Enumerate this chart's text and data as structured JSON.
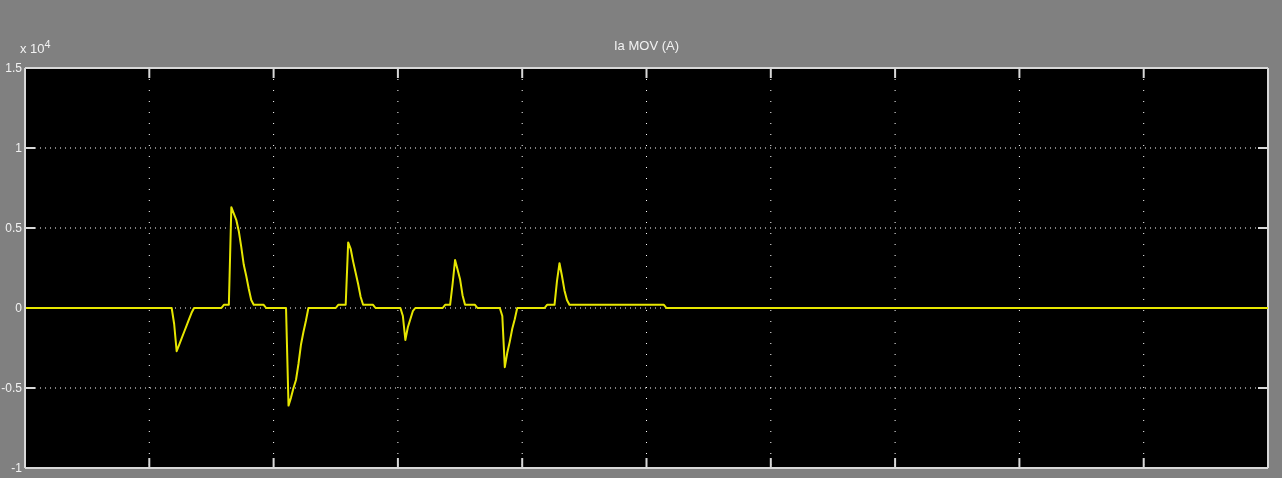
{
  "chart_data": {
    "type": "line",
    "title": "Ia MOV (A)",
    "annotations": [
      "x 10$^{4}$"
    ],
    "categories": [
      null,
      null,
      null,
      null,
      null,
      null,
      null,
      null,
      null,
      null,
      null,
      null,
      null,
      null,
      null,
      null,
      null,
      null,
      null,
      null,
      null,
      null,
      null,
      null,
      null,
      null,
      null,
      null,
      null,
      null,
      null,
      null,
      null,
      null,
      null,
      null,
      null,
      null,
      null,
      null,
      null,
      null,
      null,
      null,
      null,
      null,
      null,
      null,
      null,
      null,
      null,
      null,
      null,
      null,
      null,
      null,
      null,
      null,
      null,
      null,
      null,
      null,
      null,
      null,
      null,
      null,
      null,
      null,
      null,
      null,
      null,
      null,
      null,
      null,
      null,
      null,
      null,
      null,
      null,
      null,
      null,
      null,
      null,
      null,
      null,
      null,
      null,
      null,
      null,
      null,
      null,
      null,
      null,
      null,
      null,
      null,
      null,
      null,
      null,
      null,
      null,
      null,
      null,
      null,
      null,
      null,
      null,
      null,
      null,
      null,
      null,
      null,
      null,
      null,
      null,
      null,
      null,
      null,
      null,
      null,
      null,
      null,
      null,
      null,
      null,
      null,
      null,
      null,
      null,
      null,
      null,
      null,
      null,
      null,
      null,
      null,
      null,
      null,
      null,
      null,
      null,
      null,
      null,
      null,
      null,
      null,
      null,
      null,
      null,
      null,
      null,
      null,
      null,
      null,
      null,
      null,
      null,
      null,
      null,
      null,
      null,
      null,
      null,
      null,
      null,
      null,
      null,
      null,
      null,
      null,
      null,
      null,
      null,
      null,
      null,
      null,
      null,
      null,
      null,
      null,
      null,
      null,
      null,
      null,
      null,
      null,
      null,
      null,
      null,
      null,
      null,
      null,
      null,
      null,
      null,
      null,
      null,
      null,
      null,
      null,
      null,
      null,
      null,
      null,
      null,
      null,
      null,
      null,
      null,
      null,
      null,
      null,
      null,
      null,
      null,
      null,
      null,
      null,
      null,
      null,
      null,
      null,
      null,
      null,
      null,
      null,
      null,
      null,
      null,
      null,
      null,
      null,
      null,
      null,
      null,
      null,
      null,
      null,
      null,
      null,
      null,
      null,
      null,
      null,
      null,
      null,
      null,
      null,
      null,
      null,
      null,
      null,
      null,
      null,
      null,
      null,
      null,
      null,
      null,
      null,
      null,
      null,
      null,
      null,
      null,
      null,
      null,
      null,
      null,
      null,
      null,
      null,
      null,
      null,
      null,
      null,
      null,
      null,
      null,
      null,
      null,
      null,
      null,
      null,
      null,
      null,
      null,
      null,
      null,
      null,
      null,
      null,
      null,
      null,
      null,
      null,
      null,
      null,
      null,
      null,
      null,
      null,
      null,
      null,
      null,
      null,
      null,
      null,
      null,
      null,
      null,
      null,
      null,
      null,
      null,
      null,
      null,
      null,
      null,
      null,
      null,
      null,
      null,
      null,
      null,
      null,
      null,
      null,
      null,
      null,
      null,
      null,
      null,
      null,
      null,
      null,
      null,
      null,
      null,
      null,
      null,
      null,
      null,
      null,
      null,
      null,
      null,
      null,
      null,
      null,
      null,
      null,
      null,
      null,
      null,
      null,
      null,
      null,
      null,
      null,
      null,
      null,
      null,
      null,
      null,
      null,
      null,
      null,
      null,
      null,
      null,
      null,
      null,
      null,
      null,
      null,
      null,
      null,
      null,
      null,
      null,
      null,
      null,
      null,
      null,
      null,
      null,
      null,
      null,
      null,
      null,
      null,
      null,
      null,
      null,
      null,
      null,
      null,
      null,
      null,
      null,
      null,
      null,
      null,
      null,
      null,
      null,
      null,
      null,
      null,
      null,
      null,
      null,
      null,
      null,
      null,
      null,
      null,
      null,
      null,
      null,
      null,
      null,
      null,
      null,
      null,
      null,
      null,
      null,
      null,
      null,
      null,
      null,
      null,
      null,
      null,
      null,
      null,
      null,
      null,
      null,
      null,
      null,
      null,
      null,
      null,
      null,
      null,
      null,
      null,
      null,
      null,
      null,
      null,
      null,
      null,
      null,
      null,
      null,
      null,
      null,
      null,
      null,
      null,
      null,
      null,
      null,
      null,
      null,
      null,
      null,
      null,
      null,
      null,
      null,
      null,
      null,
      null,
      null,
      null,
      null,
      null,
      null,
      null,
      null,
      null,
      null,
      null,
      null,
      null,
      null,
      null,
      null,
      null,
      null,
      null,
      null,
      null,
      null,
      null,
      null
    ],
    "values": [
      0,
      0,
      0,
      0,
      0,
      0,
      0,
      0,
      0,
      0,
      0,
      0,
      0,
      0,
      0,
      0,
      0,
      0,
      0,
      0,
      0,
      0,
      0,
      0,
      0,
      0,
      0,
      0,
      0,
      0,
      0,
      0,
      0,
      0,
      0,
      0,
      0,
      0,
      0,
      0,
      0,
      0,
      0,
      0,
      0,
      0,
      0,
      0,
      0,
      0,
      0,
      0,
      0,
      0,
      0,
      0,
      0,
      0,
      0,
      0,
      -0.1,
      -0.27,
      -0.23,
      -0.19,
      -0.15,
      -0.11,
      -0.07,
      -0.03,
      0,
      0,
      0,
      0,
      0,
      0,
      0,
      0,
      0,
      0,
      0,
      0,
      0.02,
      0.02,
      0.02,
      0.63,
      0.59,
      0.55,
      0.48,
      0.38,
      0.27,
      0.2,
      0.12,
      0.05,
      0.02,
      0.02,
      0.02,
      0.02,
      0.02,
      0,
      0,
      0,
      0,
      0,
      0,
      0,
      0,
      0,
      -0.61,
      -0.56,
      -0.5,
      -0.45,
      -0.35,
      -0.23,
      -0.15,
      -0.08,
      0,
      0,
      0,
      0,
      0,
      0,
      0,
      0,
      0,
      0,
      0,
      0,
      0.02,
      0.02,
      0.02,
      0.02,
      0.41,
      0.37,
      0.29,
      0.22,
      0.15,
      0.07,
      0.02,
      0.02,
      0.02,
      0.02,
      0.02,
      0,
      0,
      0,
      0,
      0,
      0,
      0,
      0,
      0,
      0,
      0,
      -0.05,
      -0.2,
      -0.12,
      -0.07,
      -0.02,
      0,
      0,
      0,
      0,
      0,
      0,
      0,
      0,
      0,
      0,
      0,
      0,
      0.02,
      0.02,
      0.02,
      0.15,
      0.3,
      0.24,
      0.18,
      0.08,
      0.02,
      0.02,
      0.02,
      0.02,
      0.02,
      0,
      0,
      0,
      0,
      0,
      0,
      0,
      0,
      0,
      0,
      -0.05,
      -0.37,
      -0.28,
      -0.21,
      -0.13,
      -0.07,
      0,
      0,
      0,
      0,
      0,
      0,
      0,
      0,
      0,
      0,
      0,
      0,
      0.02,
      0.02,
      0.02,
      0.02,
      0.17,
      0.28,
      0.2,
      0.11,
      0.05,
      0.02,
      0.02,
      0.02,
      0.02,
      0.02,
      0.02,
      0.02,
      0.02,
      0.02,
      0.02,
      0.02,
      0.02,
      0.02,
      0.02,
      0.02,
      0.02,
      0.02,
      0.02,
      0.02,
      0.02,
      0.02,
      0.02,
      0.02,
      0.02,
      0.02,
      0.02,
      0.02,
      0.02,
      0.02,
      0.02,
      0.02,
      0.02,
      0.02,
      0.02,
      0.02,
      0.02,
      0.02,
      0.02,
      0.02,
      0,
      0,
      0,
      0,
      0,
      0,
      0,
      0,
      0,
      0,
      0,
      0,
      0,
      0,
      0,
      0,
      0,
      0,
      0,
      0,
      0,
      0,
      0,
      0,
      0,
      0,
      0,
      0,
      0,
      0,
      0,
      0,
      0,
      0,
      0,
      0,
      0,
      0,
      0,
      0,
      0,
      0,
      0,
      0,
      0,
      0,
      0,
      0,
      0,
      0,
      0,
      0,
      0,
      0,
      0,
      0,
      0,
      0,
      0,
      0,
      0,
      0,
      0,
      0,
      0,
      0,
      0,
      0,
      0,
      0,
      0,
      0,
      0,
      0,
      0,
      0,
      0,
      0,
      0,
      0,
      0,
      0,
      0,
      0,
      0,
      0,
      0,
      0,
      0,
      0,
      0,
      0,
      0,
      0,
      0,
      0,
      0,
      0,
      0,
      0,
      0,
      0,
      0,
      0,
      0,
      0,
      0,
      0,
      0,
      0,
      0,
      0,
      0,
      0,
      0,
      0,
      0,
      0,
      0,
      0,
      0,
      0,
      0,
      0,
      0,
      0,
      0,
      0,
      0,
      0,
      0,
      0,
      0,
      0,
      0,
      0,
      0,
      0,
      0,
      0,
      0,
      0,
      0,
      0,
      0,
      0,
      0,
      0,
      0,
      0,
      0,
      0,
      0,
      0,
      0,
      0,
      0,
      0,
      0,
      0,
      0,
      0,
      0,
      0,
      0,
      0,
      0,
      0,
      0,
      0,
      0,
      0,
      0,
      0,
      0,
      0,
      0,
      0,
      0,
      0,
      0,
      0,
      0,
      0,
      0,
      0,
      0,
      0,
      0,
      0,
      0,
      0,
      0,
      0,
      0,
      0,
      0,
      0,
      0,
      0,
      0,
      0,
      0,
      0,
      0,
      0,
      0,
      0,
      0,
      0,
      0,
      0,
      0,
      0,
      0,
      0,
      0,
      0,
      0,
      0,
      0,
      0,
      0,
      0,
      0,
      0,
      0,
      0,
      0,
      0,
      0,
      0,
      0,
      0,
      0,
      0,
      0,
      0,
      0,
      0,
      0,
      0,
      0
    ],
    "color": "#e6e600",
    "ylim": [
      -1,
      1.5
    ],
    "yticks": [
      -1,
      -0.5,
      0,
      0.5,
      1,
      1.5
    ],
    "grid": true,
    "tick_labels": "y"
  }
}
